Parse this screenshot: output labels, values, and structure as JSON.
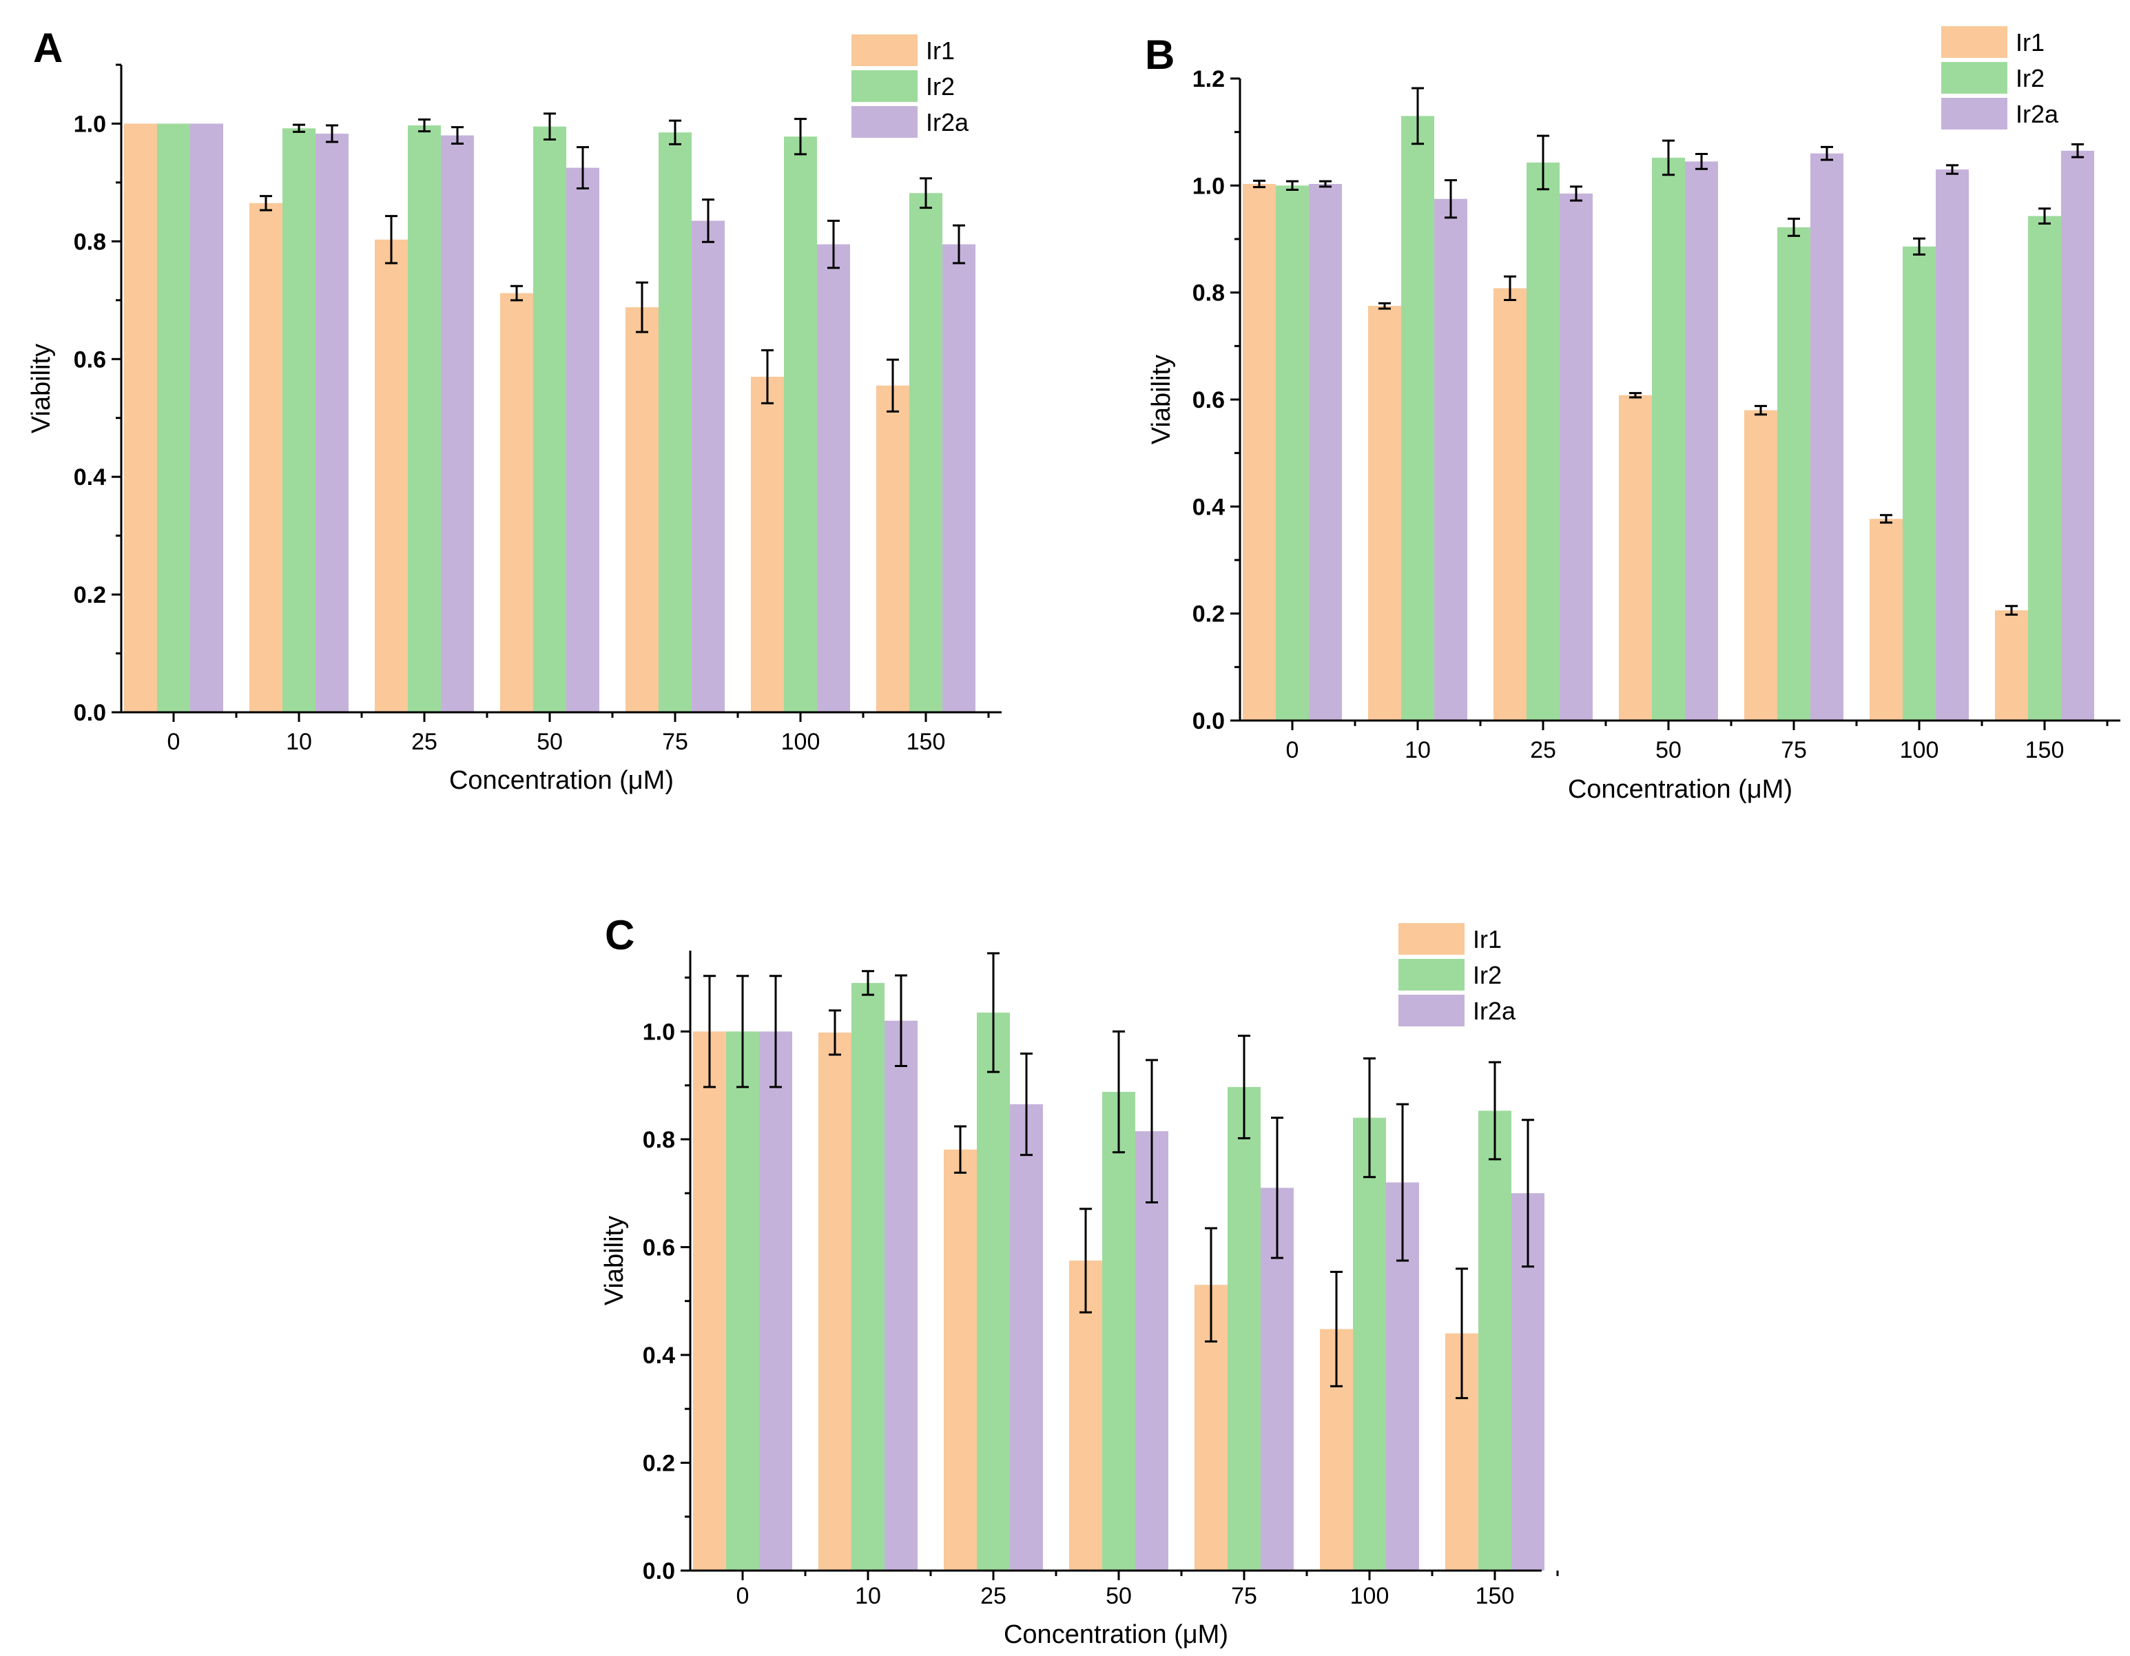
{
  "colors": {
    "Ir1": "#fac899",
    "Ir2": "#9ddb9c",
    "Ir2a": "#c5b2da",
    "axis": "#000000",
    "error": "#000000"
  },
  "chart_data": [
    {
      "panel": "A",
      "type": "bar",
      "categories": [
        "0",
        "10",
        "25",
        "50",
        "75",
        "100",
        "150"
      ],
      "xlabel": "Concentration (μM)",
      "ylabel": "Viability",
      "ylim": [
        0,
        1.1
      ],
      "yticks": [
        "0.0",
        "0.2",
        "0.4",
        "0.6",
        "0.8",
        "1.0"
      ],
      "legend": {
        "position": "top-right",
        "entries": [
          "Ir1",
          "Ir2",
          "Ir2a"
        ]
      },
      "series": [
        {
          "name": "Ir1",
          "values": [
            1.0,
            0.865,
            0.803,
            0.712,
            0.688,
            0.57,
            0.555
          ],
          "errors": [
            0,
            0.012,
            0.04,
            0.012,
            0.042,
            0.045,
            0.044
          ]
        },
        {
          "name": "Ir2",
          "values": [
            1.0,
            0.992,
            0.997,
            0.995,
            0.985,
            0.978,
            0.882
          ],
          "errors": [
            0,
            0.006,
            0.01,
            0.022,
            0.02,
            0.03,
            0.025
          ]
        },
        {
          "name": "Ir2a",
          "values": [
            1.0,
            0.983,
            0.98,
            0.925,
            0.835,
            0.795,
            0.795
          ],
          "errors": [
            0,
            0.014,
            0.014,
            0.035,
            0.036,
            0.04,
            0.032
          ]
        }
      ]
    },
    {
      "panel": "B",
      "type": "bar",
      "categories": [
        "0",
        "10",
        "25",
        "50",
        "75",
        "100",
        "150"
      ],
      "xlabel": "Concentration (μM)",
      "ylabel": "Viability",
      "ylim": [
        0,
        1.2
      ],
      "yticks": [
        "0.0",
        "0.2",
        "0.4",
        "0.6",
        "0.8",
        "1.0",
        "1.2"
      ],
      "legend": {
        "position": "top-right",
        "entries": [
          "Ir1",
          "Ir2",
          "Ir2a"
        ]
      },
      "series": [
        {
          "name": "Ir1",
          "values": [
            1.003,
            0.775,
            0.808,
            0.608,
            0.58,
            0.377,
            0.206
          ],
          "errors": [
            0.006,
            0.005,
            0.022,
            0.004,
            0.008,
            0.007,
            0.008
          ]
        },
        {
          "name": "Ir2",
          "values": [
            1.0,
            1.13,
            1.043,
            1.052,
            0.922,
            0.886,
            0.943
          ],
          "errors": [
            0.008,
            0.052,
            0.05,
            0.032,
            0.016,
            0.015,
            0.014
          ]
        },
        {
          "name": "Ir2a",
          "values": [
            1.003,
            0.975,
            0.985,
            1.045,
            1.06,
            1.03,
            1.065
          ],
          "errors": [
            0.005,
            0.035,
            0.013,
            0.014,
            0.012,
            0.008,
            0.012
          ]
        }
      ]
    },
    {
      "panel": "C",
      "type": "bar",
      "categories": [
        "0",
        "10",
        "25",
        "50",
        "75",
        "100",
        "150"
      ],
      "xlabel": "Concentration (μM)",
      "ylabel": "Viability",
      "ylim": [
        0,
        1.15
      ],
      "yticks": [
        "0.0",
        "0.2",
        "0.4",
        "0.6",
        "0.8",
        "1.0"
      ],
      "legend": {
        "position": "top-right",
        "entries": [
          "Ir1",
          "Ir2",
          "Ir2a"
        ]
      },
      "series": [
        {
          "name": "Ir1",
          "values": [
            1.0,
            0.998,
            0.781,
            0.575,
            0.53,
            0.448,
            0.44
          ],
          "errors": [
            0.103,
            0.041,
            0.043,
            0.096,
            0.105,
            0.106,
            0.12
          ]
        },
        {
          "name": "Ir2",
          "values": [
            1.0,
            1.09,
            1.035,
            0.888,
            0.897,
            0.84,
            0.853
          ],
          "errors": [
            0.103,
            0.022,
            0.11,
            0.112,
            0.095,
            0.11,
            0.09
          ]
        },
        {
          "name": "Ir2a",
          "values": [
            1.0,
            1.02,
            0.865,
            0.815,
            0.71,
            0.72,
            0.7
          ],
          "errors": [
            0.103,
            0.084,
            0.094,
            0.132,
            0.13,
            0.145,
            0.136
          ]
        }
      ]
    }
  ]
}
